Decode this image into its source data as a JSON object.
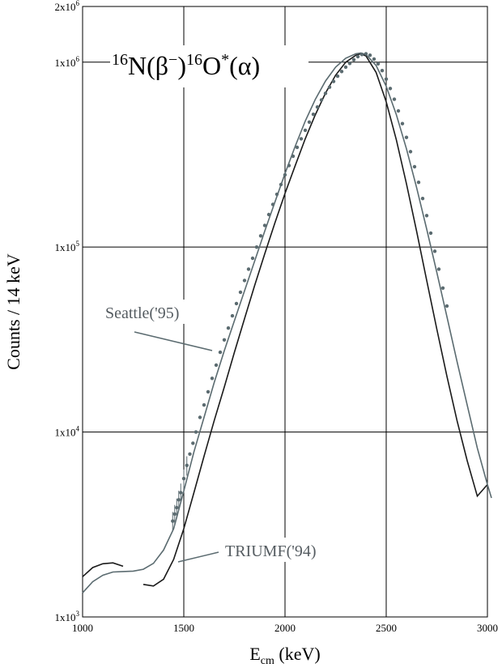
{
  "chart_data": {
    "type": "line",
    "title_parts": {
      "mass1": "16",
      "n": "N(β",
      "minus": "−",
      "close": ")",
      "mass2": "16",
      "o": "O",
      "star": "*",
      "alpha": "(α)"
    },
    "xlabel": {
      "main": "E",
      "sub": "cm",
      "unit": " (keV)"
    },
    "ylabel": "Counts / 14 keV",
    "xlim": [
      1000,
      3000
    ],
    "ylim": [
      1000,
      2000000
    ],
    "yscale": "log",
    "grid": true,
    "xticks": [
      {
        "value": 1000,
        "label": "1000"
      },
      {
        "value": 1500,
        "label": "1500"
      },
      {
        "value": 2000,
        "label": "2000"
      },
      {
        "value": 2500,
        "label": "2500"
      },
      {
        "value": 3000,
        "label": "3000"
      }
    ],
    "yticks": [
      {
        "value": 1000,
        "base": "1x10",
        "exp": "3"
      },
      {
        "value": 10000,
        "base": "1x10",
        "exp": "4"
      },
      {
        "value": 100000,
        "base": "1x10",
        "exp": "5"
      },
      {
        "value": 1000000,
        "base": "1x10",
        "exp": "6"
      },
      {
        "value": 2000000,
        "base": "2x10",
        "exp": "6"
      }
    ],
    "annotations": [
      {
        "text": "Seattle('95)",
        "series": "seattle"
      },
      {
        "text": "TRIUMF('94)",
        "series": "triumf"
      }
    ],
    "series": [
      {
        "name": "Seattle('95)",
        "key": "seattle",
        "color": "#5b6b70",
        "x": [
          1000,
          1050,
          1100,
          1150,
          1200,
          1250,
          1300,
          1350,
          1400,
          1450,
          1500,
          1550,
          1600,
          1650,
          1700,
          1750,
          1800,
          1850,
          1900,
          1950,
          2000,
          2050,
          2100,
          2150,
          2200,
          2250,
          2300,
          2350,
          2375,
          2400,
          2450,
          2500,
          2550,
          2600,
          2650,
          2700,
          2750,
          2800,
          2850,
          2900,
          2950,
          3000,
          3020
        ],
        "y": [
          1350,
          1550,
          1680,
          1750,
          1760,
          1770,
          1810,
          1950,
          2300,
          3000,
          4800,
          7800,
          12000,
          18500,
          27500,
          40000,
          58000,
          84000,
          122000,
          175000,
          250000,
          350000,
          480000,
          630000,
          790000,
          940000,
          1050000,
          1110000,
          1120000,
          1100000,
          960000,
          740000,
          520000,
          340000,
          210000,
          125000,
          73000,
          42000,
          24000,
          14000,
          8200,
          5200,
          4400
        ]
      },
      {
        "name": "TRIUMF('94)",
        "key": "triumf",
        "color": "#1a1a1a",
        "x": [
          1000,
          1050,
          1100,
          1150,
          1200
        ],
        "y": [
          1650,
          1850,
          1940,
          1960,
          1880
        ],
        "x2": [
          1300,
          1350,
          1400,
          1450,
          1500,
          1550,
          1600,
          1650,
          1700,
          1750,
          1800,
          1850,
          1900,
          1950,
          2000,
          2050,
          2100,
          2150,
          2200,
          2250,
          2300,
          2350,
          2375,
          2400,
          2450,
          2500,
          2550,
          2600,
          2650,
          2700,
          2750,
          2800,
          2850,
          2900,
          2950,
          3000
        ],
        "y2": [
          1500,
          1470,
          1600,
          2050,
          3000,
          4700,
          7400,
          11500,
          17500,
          27000,
          41000,
          62000,
          92000,
          135000,
          195000,
          275000,
          385000,
          520000,
          680000,
          850000,
          1000000,
          1090000,
          1110000,
          1080000,
          880000,
          610000,
          380000,
          220000,
          122000,
          66000,
          36000,
          20000,
          11500,
          7000,
          4500,
          5200
        ]
      },
      {
        "name": "data points",
        "key": "data",
        "color": "#5b6b70",
        "x": [
          1445,
          1455,
          1465,
          1475,
          1485,
          1500,
          1515,
          1530,
          1545,
          1560,
          1580,
          1600,
          1620,
          1640,
          1660,
          1680,
          1700,
          1720,
          1740,
          1760,
          1780,
          1800,
          1820,
          1840,
          1860,
          1880,
          1900,
          1920,
          1940,
          1960,
          1980,
          2000,
          2020,
          2040,
          2060,
          2080,
          2100,
          2120,
          2140,
          2160,
          2180,
          2200,
          2220,
          2240,
          2260,
          2280,
          2300,
          2320,
          2340,
          2360,
          2380,
          2400,
          2420,
          2440,
          2460,
          2480,
          2500,
          2520,
          2540,
          2560,
          2580,
          2600,
          2620,
          2640,
          2660,
          2680,
          2700,
          2720,
          2740,
          2760,
          2780,
          2800
        ],
        "y": [
          3300,
          3600,
          3900,
          4300,
          4700,
          5600,
          6600,
          7600,
          8700,
          10000,
          12000,
          14000,
          16500,
          19500,
          23000,
          27000,
          31500,
          36500,
          42500,
          49500,
          57000,
          66000,
          76000,
          87000,
          100000,
          115000,
          131000,
          150000,
          170000,
          193000,
          218000,
          246000,
          276000,
          310000,
          346000,
          385000,
          428000,
          474000,
          522000,
          572000,
          624000,
          678000,
          732000,
          786000,
          840000,
          890000,
          940000,
          985000,
          1030000,
          1070000,
          1100000,
          1110000,
          1090000,
          1040000,
          980000,
          900000,
          810000,
          720000,
          630000,
          545000,
          465000,
          392000,
          328000,
          272000,
          224000,
          183000,
          148000,
          119000,
          95000,
          76000,
          60000,
          48000
        ]
      }
    ]
  }
}
